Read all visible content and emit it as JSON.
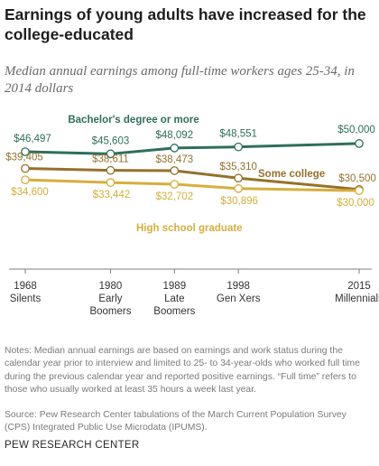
{
  "title": "Earnings of young adults have increased for the college-educated",
  "subtitle": "Median annual earnings among full-time workers ages 25-34, in 2014 dollars",
  "notes": "Notes: Median annual earnings are based on earnings and work status during the calendar year prior to interview and limited to 25- to 34-year-olds who worked full time during the previous calendar year and reported positive earnings. “Full time” refers to those who usually worked at least 35 hours a week last year.",
  "source": "Source: Pew Research Center tabulations of the March Current Population Survey (CPS) Integrated Public Use Microdata (IPUMS).",
  "org": "PEW RESEARCH CENTER",
  "chart_data": {
    "type": "line",
    "x": [
      1968,
      1980,
      1989,
      1998,
      2015
    ],
    "x_labels": [
      {
        "year": "1968",
        "generation": [
          "Silents"
        ]
      },
      {
        "year": "1980",
        "generation": [
          "Early",
          "Boomers"
        ]
      },
      {
        "year": "1989",
        "generation": [
          "Late",
          "Boomers"
        ]
      },
      {
        "year": "1998",
        "generation": [
          "Gen Xers"
        ]
      },
      {
        "year": "2015",
        "generation": [
          "Millennials"
        ]
      }
    ],
    "ylim": [
      20000,
      55000
    ],
    "grid": false,
    "series": [
      {
        "name": "Bachelor's degree or more",
        "color": "#2f6e5c",
        "values": [
          46497,
          45603,
          48092,
          48551,
          50000
        ],
        "labels": [
          "$46,497",
          "$45,603",
          "$48,092",
          "$48,551",
          "$50,000"
        ]
      },
      {
        "name": "Some college",
        "color": "#94712b",
        "values": [
          39405,
          38611,
          38473,
          35310,
          30500
        ],
        "labels": [
          "$39,405",
          "$38,611",
          "$38,473",
          "$35,310",
          "$30,500"
        ]
      },
      {
        "name": "High school graduate",
        "color": "#d6ae3c",
        "values": [
          34600,
          33442,
          32702,
          30896,
          30000
        ],
        "labels": [
          "$34,600",
          "$33,442",
          "$32,702",
          "$30,896",
          "$30,000"
        ]
      }
    ]
  }
}
